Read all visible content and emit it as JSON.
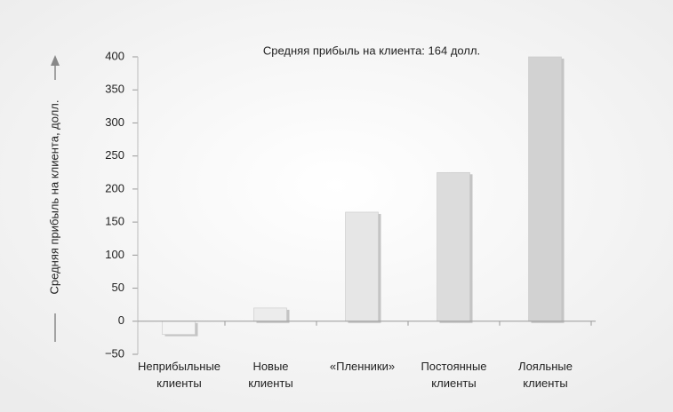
{
  "chart_data": {
    "type": "bar",
    "title": "Средняя прибыль на клиента: 164 долл.",
    "y_label": "Средняя прибыль на клиента, долл.",
    "categories": [
      "Неприбыльные клиенты",
      "Новые клиенты",
      "«Пленники»",
      "Постоянные клиенты",
      "Лояльные клиенты"
    ],
    "values": [
      -20,
      20,
      165,
      225,
      400
    ],
    "colors": [
      "#f4f4f4",
      "#ececec",
      "#e6e6e6",
      "#dcdcdc",
      "#d2d2d2"
    ],
    "ylim": [
      -50,
      400
    ],
    "yticks": [
      {
        "value": -50,
        "label": "−50"
      },
      0,
      50,
      100,
      150,
      200,
      250,
      300,
      350,
      400
    ],
    "grid": false
  }
}
